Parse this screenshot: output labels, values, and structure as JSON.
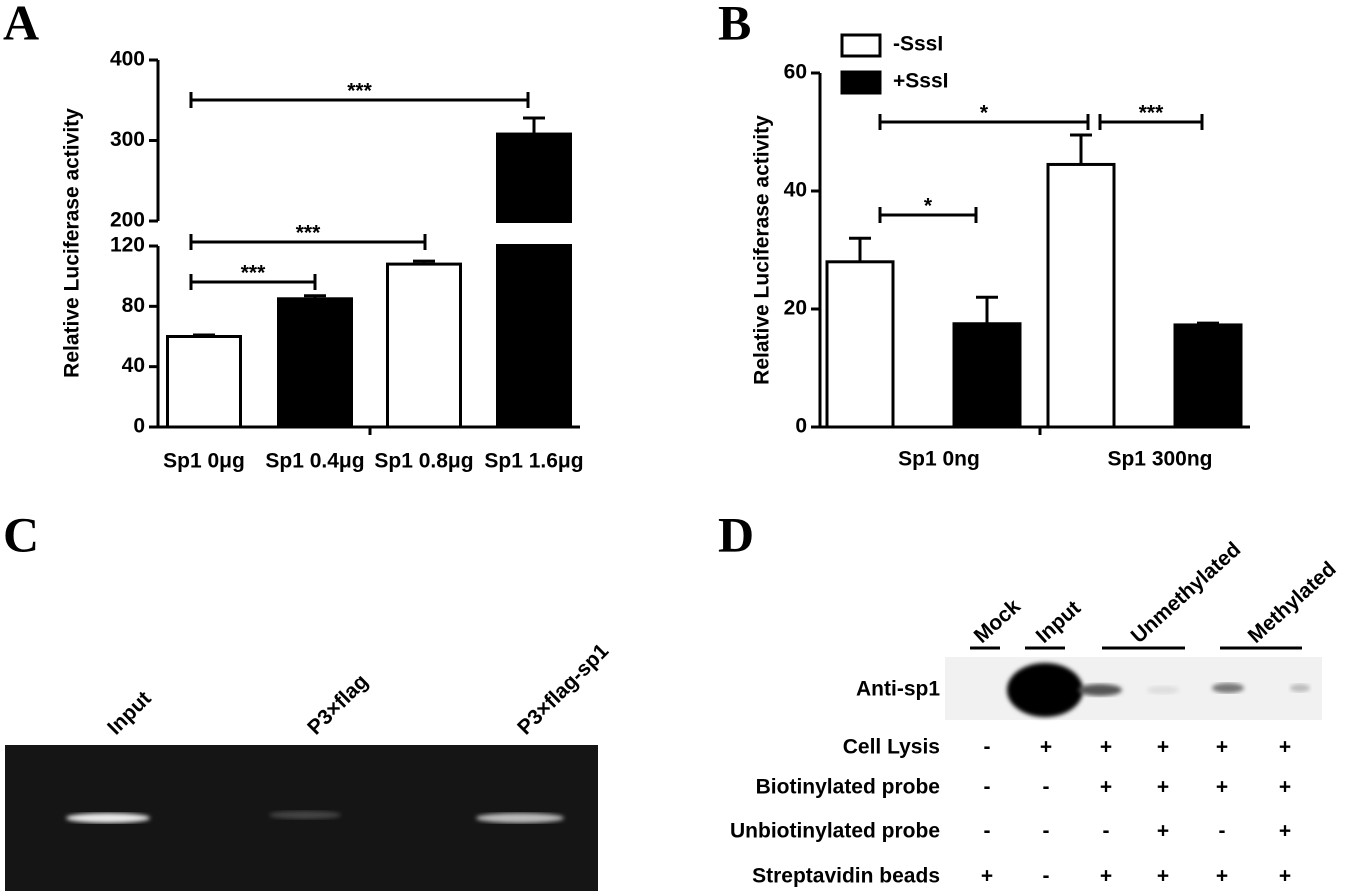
{
  "panel_labels": [
    "A",
    "B",
    "C",
    "D"
  ],
  "chart_data": [
    {
      "type": "bar",
      "ylabel": "Relative Luciferase activity",
      "categories": [
        "Sp1 0μg",
        "Sp1 0.4μg",
        "Sp1 0.8μg",
        "Sp1 1.6μg"
      ],
      "values": [
        60,
        85,
        108,
        308
      ],
      "errors": [
        1,
        2,
        2,
        20
      ],
      "colors": [
        "#ffffff",
        "#000000",
        "#ffffff",
        "#000000"
      ],
      "ylim": [
        0,
        400
      ],
      "yticks": [
        0,
        40,
        80,
        120,
        200,
        300,
        400
      ],
      "axis_break": [
        120,
        200
      ],
      "annotations": [
        "***",
        "***",
        "***"
      ]
    },
    {
      "type": "bar",
      "ylabel": "Relative Luciferase activity",
      "categories": [
        "Sp1 0ng",
        "Sp1 300ng"
      ],
      "series": [
        {
          "name": "-SssI",
          "color": "#ffffff",
          "values": [
            28,
            44.5
          ],
          "errors": [
            4,
            5
          ]
        },
        {
          "name": "+SssI",
          "color": "#000000",
          "values": [
            17.5,
            17.3
          ],
          "errors": [
            4.5,
            0.3
          ]
        }
      ],
      "ylim": [
        0,
        60
      ],
      "yticks": [
        0,
        20,
        40,
        60
      ],
      "legend": "upper left",
      "annotations": [
        "*",
        "***",
        "*"
      ]
    }
  ],
  "gel_c": {
    "lanes": [
      "Input",
      "P3×flag",
      "P3×flag-sp1"
    ]
  },
  "blot_d": {
    "groups": [
      "Mock",
      "Input",
      "Unmethylated",
      "Methylated"
    ],
    "antibody": "Anti-sp1",
    "rows": [
      {
        "label": "Cell Lysis",
        "marks": [
          "-",
          "+",
          "+",
          "+",
          "+",
          "+"
        ]
      },
      {
        "label": "Biotinylated probe",
        "marks": [
          "-",
          "-",
          "+",
          "+",
          "+",
          "+"
        ]
      },
      {
        "label": "Unbiotinylated probe",
        "marks": [
          "-",
          "-",
          "-",
          "+",
          "-",
          "+"
        ]
      },
      {
        "label": "Streptavidin beads",
        "marks": [
          "+",
          "-",
          "+",
          "+",
          "+",
          "+"
        ]
      }
    ]
  }
}
